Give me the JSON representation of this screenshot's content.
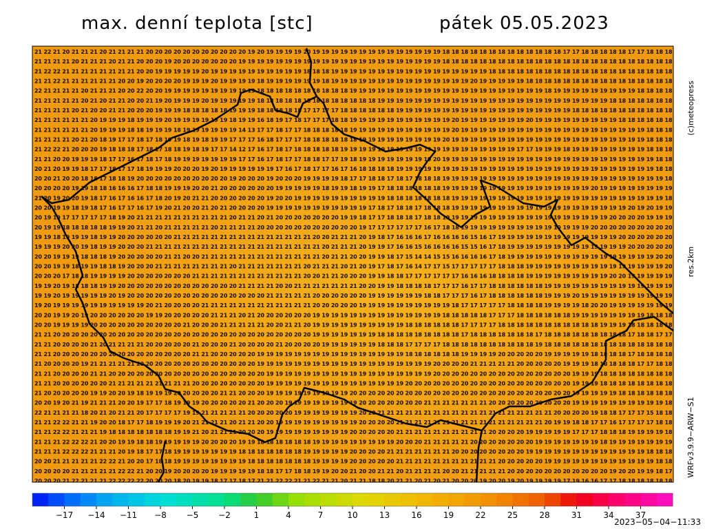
{
  "header": {
    "title": "max. denní teplota [stc]",
    "date": "pátek 05.05.2023"
  },
  "side_labels": [
    "(c)meteopress",
    "res.2km",
    "WRFv3.9.9−ARW−S1"
  ],
  "map": {
    "grid_rows": [
      "21 22 21 20 21 21 21 20 21 21 21 21 20 20 20 20 20 20 20 20 20 20 20 19 20 19 19 19 19 20 19 19 19 19 19 19 19 19 19 19 19 19 19 19 18 18 18 18 18 18 18 18 18 18 18 18 18 17 17 18 18 18 18 18 17 17 18 18 18 17",
      "21 21 21 21 20 21 21 21 20 21 21 20 20 20 19 20 20 20 20 20 20 20 19 19 19 19 19 19 19 19 19 19 19 19 19 19 19 19 19 19 19 19 19 19 18 18 18 18 18 18 18 18 18 18 18 18 18 18 18 18 18 18 18 18 18 18 18 18 18 18",
      "21 22 22 21 21 21 21 21 21 21 21 20 20 19 19 19 19 19 20 19 19 19 19 19 19 19 19 19 19 18 18 18 19 19 19 19 19 19 19 19 19 19 19 19 19 19 19 19 19 18 18 18 18 18 18 18 18 18 18 18 18 18 18 18 18 18 18 18 18 18",
      "21 21 22 21 21 21 21 21 21 20 20 19 20 20 20 20 19 19 19 20 19 19 19 19 18 19 19 19 19 19 19 18 19 19 19 19 19 19 19 19 19 19 19 19 19 19 19 20 19 19 19 19 19 18 18 18 18 18 18 18 18 18 18 18 18 18 18 18 18 18",
      "22 21 21 21 21 20 21 21 21 20 20 22 20 20 19 19 19 19 19 19 19 19 19 19 18 18 18 18 18 18 18 18 18 18 19 19 19 19 19 19 19 19 19 19 19 19 19 19 19 19 19 19 19 19 19 18 19 19 19 19 19 19 19 19 19 18 18 18 18 18",
      "21 21 21 21 21 20 21 20 21 21 20 20 21 19 20 19 19 19 20 19 19 19 19 19 18 18 18 18 18 18 18 18 18 18 18 18 18 19 19 19 19 19 19 19 19 19 19 19 19 19 19 19 19 19 19 19 19 19 19 19 19 19 18 18 18 18 18 18 18 18",
      "21 21 21 21 20 21 20 20 21 21 20 20 20 19 19 19 18 18 18 18 18 19 19 19 18 18 18 18 18 17 17 17 17 18 18 18 18 18 18 19 19 19 19 19 19 19 19 19 19 19 19 19 19 19 19 19 19 19 18 18 18 18 18 18 18 18 18 18 18 18",
      "21 21 21 21 21 21 20 19 19 19 18 19 19 19 20 19 19 19 19 19 19 18 19 19 16 18 19 17 18 17 17 17 18 18 19 19 19 19 19 19 19 19 19 19 19 20 19 19 19 19 19 19 19 20 19 19 19 19 19 19 19 19 19 18 18 18 18 18 18 18",
      "21 21 21 21 21 21 20 19 19 19 18 18 19 19 19 18 19 19 19 19 19 19 14 13 17 17 18 17 17 18 18 18 18 18 19 19 19 19 19 19 19 19 19 19 19 20 19 19 19 19 19 19 19 19 19 19 19 19 19 19 19 19 19 19 19 19 18 18 18 18",
      "21 21 21 21 20 21 20 18 19 17 17 18 17 18 19 19 18 19 18 19 19 17 17 17 16 18 17 17 17 18 18 18 18 18 18 19 19 19 19 19 19 19 19 19 20 19 19 19 19 19 19 19 19 19 19 19 19 19 19 19 19 19 19 19 19 19 18 18 18 18",
      "21 22 22 21 20 20 20 19 18 18 18 17 18 17 18 18 19 18 19 17 17 14 12 17 16 17 18 17 18 18 18 18 18 19 19 19 19 19 19 19 19 19 19 19 19 19 19 19 19 19 19 19 17 17 19 19 19 18 19 19 19 19 19 19 19 19 18 18 18 18",
      "21 21 20 20 19 19 19 18 17 17 16 17 18 17 18 19 19 19 19 19 19 19 17 17 16 17 18 17 17 18 18 17 17 19 18 19 19 19 19 19 19 19 19 20 19 19 19 19 19 19 19 19 19 19 19 19 19 19 19 19 19 19 19 19 19 19 19 18 18 18",
      "20 21 20 19 19 18 17 17 18 17 17 18 19 19 19 20 20 20 19 20 19 19 19 19 19 19 17 16 17 18 17 17 16 17 16 18 18 18 18 19 19 19 19 19 19 19 19 19 19 19 19 19 19 19 19 19 19 19 19 19 19 19 19 19 19 19 19 18 18 18",
      "20 20 21 20 20 18 18 17 18 18 19 20 20 20 20 20 20 20 20 20 20 19 20 20 20 19 20 20 20 19 19 19 19 18 17 17 18 18 17 18 17 18 18 18 19 19 19 19 19 19 19 19 19 19 19 19 19 19 19 19 19 19 19 19 19 19 19 19 18 18",
      "20 20 20 20 19 19 18 18 16 16 16 17 18 18 19 19 19 20 20 21 20 20 20 20 20 20 19 19 19 19 19 18 19 19 18 19 19 17 18 18 18 18 18 18 19 19 19 19 19 19 19 19 19 19 19 19 19 19 19 19 20 19 19 19 19 19 19 19 19 18",
      "21 20 19 20 20 19 18 17 16 17 16 16 17 18 20 19 20 21 21 20 20 20 20 20 20 19 20 20 19 19 19 19 19 19 19 19 19 19 18 18 18 18 18 18 18 19 19 19 19 19 19 19 19 19 19 19 19 19 19 19 19 19 19 19 19 19 19 19 18 18",
      "20 20 19 19 18 19 18 17 16 17 17 16 17 19 20 21 20 20 21 20 21 20 20 20 20 19 19 19 19 19 19 19 19 19 19 19 17 18 17 18 18 17 18 18 18 19 19 19 19 19 19 19 19 19 19 19 19 19 19 19 19 19 19 19 20 19 20 19 19 19",
      "20 19 19 17 17 17 17 17 18 19 20 21 21 21 21 21 21 21 21 21 21 20 21 21 20 21 20 20 20 20 20 20 20 19 19 18 17 17 18 18 18 17 18 18 19 19 19 19 19 19 19 19 19 19 19 19 19 19 19 19 19 19 20 20 20 20 19 19 19 19",
      "20 19 19 18 18 18 18 18 19 19 20 21 21 20 21 21 21 21 21 20 21 21 21 21 20 20 20 20 20 20 20 20 20 20 20 19 17 17 17 17 17 17 16 17 18 18 19 19 19 19 19 19 19 19 19 19 19 19 19 19 20 20 20 20 20 20 20 20 20 20",
      "19 19 18 19 19 19 18 19 19 20 20 20 20 20 20 21 21 21 21 21 21 21 21 21 21 21 21 21 21 21 20 20 21 21 21 20 19 18 17 16 16 16 17 16 16 16 16 15 16 17 19 19 19 19 19 19 19 19 19 19 19 19 19 20 20 20 20 20 20 20",
      "19 19 19 20 20 19 18 19 19 20 20 20 21 21 21 21 21 21 21 21 21 21 21 21 21 21 21 21 21 21 21 20 21 21 21 20 19 19 17 16 16 15 16 16 16 16 15 15 16 17 18 19 19 19 19 19 19 19 19 19 19 19 19 19 20 20 20 20 20 20",
      "20 20 19 19 19 18 18 18 19 20 20 20 20 20 21 21 20 20 21 21 21 21 21 21 21 21 21 21 21 21 21 20 21 21 20 20 19 19 18 17 15 14 14 15 15 16 16 16 16 17 18 19 19 19 19 19 19 19 19 19 19 19 19 19 19 19 19 20 20 19",
      "20 20 19 19 18 19 19 18 18 19 20 20 20 21 21 21 21 21 21 21 21 20 21 21 21 21 21 21 21 20 21 21 21 20 21 20 19 17 18 17 16 14 17 17 15 17 17 17 17 17 18 18 18 19 19 19 19 19 19 19 19 19 19 19 19 19 19 19 20 20",
      "20 20 20 17 18 18 19 19 19 19 20 20 20 20 20 20 20 21 21 21 21 21 21 21 21 21 21 21 21 20 20 21 21 20 20 20 19 19 18 18 17 17 17 17 17 17 16 16 16 18 18 18 18 19 19 19 19 19 19 19 19 19 20 20 19 19 19 19 19 19",
      "19 19 20 19 18 18 18 19 19 20 20 20 20 20 20 20 20 20 20 20 20 20 21 21 21 21 20 20 21 21 21 21 21 21 21 20 20 19 19 18 18 18 18 17 17 17 16 17 17 18 18 18 18 18 18 19 19 19 19 19 19 19 19 19 19 19 19 19 19 19",
      "19 19 20 19 19 19 19 19 20 19 20 20 20 20 20 20 20 20 20 20 20 20 20 20 20 21 21 21 21 21 20 20 20 20 20 20 19 19 19 19 19 19 18 18 17 17 17 16 17 18 18 18 18 18 18 19 19 19 20 19 19 19 19 19 19 19 19 19 19 19",
      "19 20 19 19 19 19 19 19 19 19 19 19 20 21 20 20 20 20 21 21 21 21 21 21 21 21 21 21 21 21 20 20 20 20 20 19 19 19 19 19 19 19 19 19 19 18 17 17 17 17 17 18 18 18 18 19 19 19 19 18 20 20 19 19 19 19 19 19 19 19",
      "20 20 19 19 20 19 20 20 20 20 20 20 19 19 20 20 20 20 20 21 21 21 20 21 20 20 20 20 20 20 19 19 19 19 19 19 19 19 19 19 19 19 19 19 18 18 18 18 18 17 17 17 18 18 18 18 18 18 19 19 19 19 19 19 19 19 18 18 18 18",
      "20 20 19 19 19 19 20 20 20 20 20 20 20 20 20 20 21 20 20 20 21 21 21 21 21 20 20 21 21 20 19 19 19 19 19 19 19 19 19 19 18 18 18 18 18 18 17 17 17 17 18 18 18 18 18 18 18 18 18 18 18 19 19 19 18 18 18 18 18 18",
      "21 21 20 20 20 20 20 20 20 20 20 20 20 20 20 20 20 20 20 20 20 20 20 20 20 20 20 20 20 20 19 19 19 19 19 19 19 18 18 18 18 18 18 18 18 18 17 18 18 18 18 18 18 18 17 18 18 18 18 18 18 18 18 18 17 18 18 17 17 17",
      "21 21 20 20 20 20 21 20 21 21 21 21 20 20 20 20 20 21 20 20 20 21 20 20 20 20 21 20 20 20 20 19 19 19 19 19 19 18 18 18 17 17 17 17 18 18 18 18 18 18 18 18 18 18 19 18 18 18 18 18 18 18 18 18 18 18 18 18 18 18",
      "21 21 20 20 20 20 20 20 20 20 20 20 20 20 20 20 20 21 21 20 20 20 20 20 19 19 19 19 19 19 19 19 19 19 19 19 19 19 19 19 18 18 18 18 18 18 19 19 19 19 20 20 20 20 20 19 19 19 19 19 18 18 18 18 17 18 18 18 18 18",
      "21 20 20 20 20 19 21 21 21 21 21 20 20 20 20 20 20 20 20 20 20 20 20 20 19 19 19 19 19 19 19 19 19 19 19 19 19 19 19 19 19 19 19 20 20 20 20 21 21 21 21 21 20 20 20 20 20 19 19 19 18 18 18 18 18 17 17 18 18 18",
      "21 21 20 20 20 20 21 21 20 20 20 20 20 20 20 20 20 20 20 20 20 20 20 20 20 19 19 19 19 19 19 19 19 19 19 19 19 19 19 19 19 19 19 20 20 20 20 20 20 20 20 20 20 20 20 20 20 20 19 19 19 18 18 18 18 18 18 18 18 17",
      "21 21 20 20 20 20 20 20 21 21 21 21 21 21 21 21 21 20 20 20 20 20 20 20 20 19 19 19 19 19 19 19 19 19 19 19 19 19 19 19 20 20 20 20 20 20 20 20 20 20 20 20 20 20 20 20 20 20 19 19 19 18 18 18 18 18 18 18 18 18",
      "21 20 20 20 20 20 19 19 20 20 19 18 19 19 19 20 20 20 20 20 21 21 20 20 20 19 19 19 19 19 19 19 19 19 20 20 20 20 20 20 20 20 20 20 20 20 20 20 20 20 20 20 20 20 20 20 20 20 19 19 19 19 19 18 18 18 18 18 18 18",
      "20 20 19 20 21 19 21 21 21 20 20 19 17 17 18 19 19 19 20 20 20 20 20 21 20 20 20 19 19 19 19 19 19 19 19 20 20 20 20 20 20 20 21 21 21 21 21 21 21 20 20 20 20 20 20 20 20 20 19 19 19 19 19 19 19 19 19 19 18 18",
      "22 21 21 21 21 18 20 21 20 21 21 20 17 17 17 17 19 19 21 21 21 21 21 20 20 20 20 20 19 19 19 19 19 19 19 20 20 21 21 21 21 21 21 21 21 21 21 21 21 21 21 21 21 21 21 21 20 20 20 20 19 18 18 17 17 17 15 18 18 18",
      "21 21 22 22 21 21 19 20 20 18 17 17 18 19 19 19 20 21 21 21 21 20 21 21 20 20 19 19 19 19 19 19 19 19 19 20 20 20 20 21 21 21 21 21 21 21 21 21 21 21 21 21 21 21 21 20 19 19 18 18 17 17 16 17 17 17 17 18 18 18",
      "21 21 22 22 21 21 21 19 18 18 18 18 18 18 18 19 19 21 20 21 21 21 20 20 20 19 19 19 19 19 19 19 19 19 20 20 20 20 20 21 21 21 21 21 21 21 21 21 21 20 20 20 20 19 19 19 19 19 17 17 17 18 18 18 19 19 19 19 18 18",
      "21 21 21 22 22 22 21 20 20 19 19 18 18 19 19 19 19 19 20 20 20 20 19 19 18 18 18 18 18 18 19 19 19 19 19 19 19 19 19 20 20 20 21 21 21 21 21 20 20 20 20 20 20 20 19 19 19 19 19 19 19 18 19 19 19 19 19 19 19 18",
      "21 21 21 22 22 22 21 21 21 20 19 18 17 17 18 19 19 19 19 19 19 19 18 18 18 18 18 18 18 19 19 19 19 19 20 20 20 20 21 21 21 21 21 21 21 20 20 20 20 20 20 20 20 19 19 19 19 19 19 19 19 19 19 19 19 19 18 18 18 18",
      "20 20 21 21 21 21 21 22 22 21 20 20 17 18 18 19 19 19 19 19 19 19 19 18 18 18 18 18 18 18 19 19 19 19 20 20 20 20 20 21 21 21 21 21 21 21 21 21 21 21 20 20 20 20 20 19 19 19 19 19 19 19 19 19 19 19 19 18 18 18",
      "20 20 20 20 21 21 21 21 21 22 22 21 20 20 19 20 20 20 20 19 19 19 19 19 18 18 17 17 18 18 19 19 20 20 21 20 20 21 21 20 21 21 21 21 20 20 21 21 21 21 21 20 20 20 20 20 20 20 20 20 20 20 19 20 20 19 19 18 17 17",
      "20 20 20 21 22 21 21 21 22 22 22 22 20 20 20 18 20 19 19 18 17 17 18 17 21 21 22 22 21 21 22 21 21 20 21 21 18 18 20 21 21 20 21 20 21 20 20 20 19 20 20 19 20 19 19 19 19 17 19 16 16 17 17 18 18 18 18 18 18 18"
    ]
  },
  "colorbar": {
    "lim": [
      -20,
      40
    ],
    "ticks": [
      {
        "value": -17,
        "label": "−17"
      },
      {
        "value": -14,
        "label": "−14"
      },
      {
        "value": -11,
        "label": "−11"
      },
      {
        "value": -8,
        "label": "−8"
      },
      {
        "value": -5,
        "label": "−5"
      },
      {
        "value": -2,
        "label": "−2"
      },
      1,
      4,
      7,
      10,
      13,
      16,
      19,
      22,
      25,
      28,
      31,
      34,
      37
    ],
    "color_stops": [
      {
        "value": -20,
        "color": "#0010f0"
      },
      {
        "value": -17,
        "color": "#0060ff"
      },
      {
        "value": -13,
        "color": "#00a8f0"
      },
      {
        "value": -8,
        "color": "#00dcdc"
      },
      {
        "value": -2,
        "color": "#00e08c"
      },
      {
        "value": 1,
        "color": "#30c830"
      },
      {
        "value": 5,
        "color": "#9ce000"
      },
      {
        "value": 11,
        "color": "#e0d800"
      },
      {
        "value": 17,
        "color": "#f2b400"
      },
      {
        "value": 23,
        "color": "#f29000"
      },
      {
        "value": 28,
        "color": "#ee5a00"
      },
      {
        "value": 31,
        "color": "#ee0010"
      },
      {
        "value": 35,
        "color": "#ff0070"
      },
      {
        "value": 40,
        "color": "#ff10c8"
      }
    ]
  },
  "timestamp": "2023−05−04−11:33"
}
